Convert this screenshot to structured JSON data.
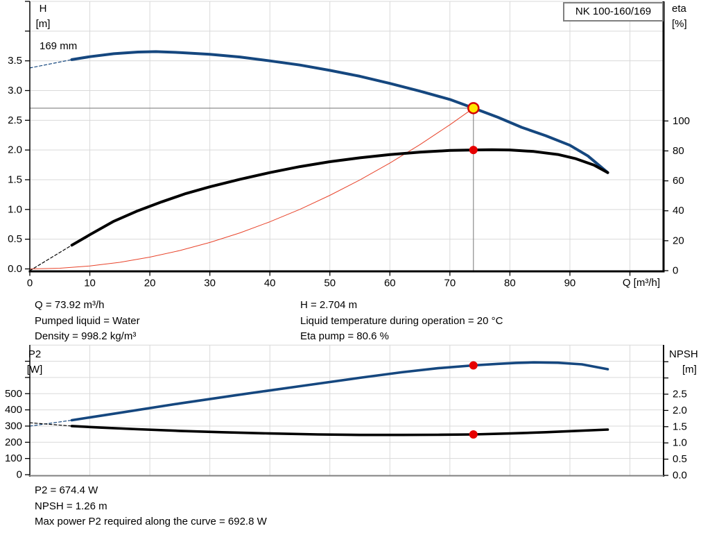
{
  "page": {
    "background": "#ffffff",
    "grid_color": "#d9d9d9",
    "accent_blue": "#15477f",
    "accent_red": "#e8432a",
    "marker_red": "#e60000",
    "duty_fill": "#ffe600",
    "duty_ring": "#d40000",
    "crosshair_color": "#8c8c8c"
  },
  "header": {
    "pump_name": "NK 100-160/169"
  },
  "top_chart_labels": {
    "left_axis_title": [
      "H",
      "[m]"
    ],
    "right_axis_title": [
      "eta",
      "[%]"
    ],
    "x_axis_title": "Q [m³/h]",
    "curve_label": "169 mm"
  },
  "bottom_chart_labels": {
    "left_axis_title": [
      "P2",
      "[W]"
    ],
    "right_axis_title": [
      "NPSH",
      "[m]"
    ]
  },
  "info_block_top": {
    "col1": [
      "Q = 73.92 m³/h",
      "Pumped liquid = Water",
      "Density = 998.2 kg/m³"
    ],
    "col2": [
      "H = 2.704 m",
      "Liquid temperature during operation = 20 °C",
      "Eta pump = 80.6 %"
    ]
  },
  "info_block_bottom": [
    "P2 = 674.4 W",
    "NPSH = 1.26 m",
    "Max power P2 required along the curve = 692.8 W"
  ],
  "chart_data": [
    {
      "type": "line",
      "name": "qh-eta-chart",
      "title": "NK 100-160/169",
      "xlabel": "Q [m³/h]",
      "ylabel_left": "H [m]",
      "ylabel_right": "eta [%]",
      "xlim": [
        0,
        105.6
      ],
      "ylim_left": [
        0,
        4.5
      ],
      "ylim_right": [
        0,
        108
      ],
      "x_ticks": {
        "values": [
          0,
          10,
          20,
          30,
          40,
          50,
          60,
          70,
          80,
          90,
          100
        ],
        "labels": [
          "0",
          "10",
          "20",
          "30",
          "40",
          "50",
          "60",
          "70",
          "80",
          "90",
          ""
        ]
      },
      "left_ticks": {
        "values": [
          0,
          0.5,
          1.0,
          1.5,
          2.0,
          2.5,
          3.0,
          3.5,
          4.0,
          4.5
        ],
        "labels": [
          "0.0",
          "0.5",
          "1.0",
          "1.5",
          "2.0",
          "2.5",
          "3.0",
          "3.5",
          "",
          ""
        ]
      },
      "right_ticks": {
        "values": [
          0,
          20,
          40,
          60,
          80,
          100
        ],
        "labels": [
          "0",
          "20",
          "40",
          "60",
          "80",
          "100"
        ]
      },
      "grid": {
        "vertical": [
          10,
          20,
          30,
          40,
          50,
          60,
          70,
          80,
          90,
          100
        ],
        "horizontal": [
          0.5,
          1.0,
          1.5,
          2.0,
          2.5,
          3.0,
          3.5,
          4.0,
          4.5
        ]
      },
      "crosshair": {
        "q": 73.92,
        "value": 2.704,
        "axis": "left"
      },
      "series": [
        {
          "name": "head-curve-dashed",
          "axis": "left",
          "color": "#15477f",
          "width": 1.2,
          "dash": "4 3",
          "points": [
            [
              0,
              3.38
            ],
            [
              3,
              3.44
            ],
            [
              7,
              3.52
            ]
          ]
        },
        {
          "name": "system-curve",
          "axis": "left",
          "color": "#e8432a",
          "width": 1,
          "points": [
            [
              0,
              0
            ],
            [
              5,
              0.012
            ],
            [
              10,
              0.05
            ],
            [
              15,
              0.111
            ],
            [
              20,
              0.198
            ],
            [
              25,
              0.309
            ],
            [
              30,
              0.445
            ],
            [
              35,
              0.606
            ],
            [
              40,
              0.792
            ],
            [
              45,
              1.002
            ],
            [
              50,
              1.237
            ],
            [
              55,
              1.497
            ],
            [
              60,
              1.781
            ],
            [
              65,
              2.091
            ],
            [
              70,
              2.424
            ],
            [
              73.92,
              2.704
            ]
          ]
        },
        {
          "name": "eta-curve-dashed",
          "axis": "right",
          "color": "#000000",
          "width": 1.2,
          "dash": "4 3",
          "points": [
            [
              0,
              0
            ],
            [
              7,
              17
            ]
          ]
        },
        {
          "name": "head-curve",
          "axis": "left",
          "color": "#15477f",
          "width": 4,
          "points": [
            [
              7,
              3.52
            ],
            [
              10,
              3.57
            ],
            [
              14,
              3.62
            ],
            [
              18,
              3.648
            ],
            [
              21,
              3.655
            ],
            [
              25,
              3.64
            ],
            [
              30,
              3.61
            ],
            [
              35,
              3.565
            ],
            [
              40,
              3.5
            ],
            [
              45,
              3.43
            ],
            [
              50,
              3.34
            ],
            [
              55,
              3.24
            ],
            [
              60,
              3.12
            ],
            [
              65,
              2.99
            ],
            [
              70,
              2.85
            ],
            [
              73.92,
              2.704
            ],
            [
              78,
              2.55
            ],
            [
              82,
              2.38
            ],
            [
              86,
              2.24
            ],
            [
              90,
              2.08
            ],
            [
              93,
              1.9
            ],
            [
              96.3,
              1.62
            ]
          ]
        },
        {
          "name": "eta-curve",
          "axis": "right",
          "color": "#000000",
          "width": 4,
          "points": [
            [
              7,
              17
            ],
            [
              10,
              24
            ],
            [
              14,
              33
            ],
            [
              18,
              40
            ],
            [
              22,
              46
            ],
            [
              26,
              51.5
            ],
            [
              30,
              56
            ],
            [
              35,
              61
            ],
            [
              40,
              65.5
            ],
            [
              45,
              69.5
            ],
            [
              50,
              72.8
            ],
            [
              55,
              75.4
            ],
            [
              60,
              77.5
            ],
            [
              65,
              79.2
            ],
            [
              70,
              80.3
            ],
            [
              73.92,
              80.6
            ],
            [
              77,
              80.8
            ],
            [
              80,
              80.6
            ],
            [
              84,
              79.6
            ],
            [
              88,
              77.6
            ],
            [
              91,
              74.8
            ],
            [
              94,
              70.5
            ],
            [
              96.3,
              65.5
            ]
          ]
        }
      ],
      "markers": [
        {
          "name": "eta-operating-point",
          "axis": "right",
          "q": 73.92,
          "value": 80.6,
          "kind": "dot"
        },
        {
          "name": "duty-point",
          "axis": "left",
          "q": 73.92,
          "value": 2.704,
          "kind": "duty"
        }
      ]
    },
    {
      "type": "line",
      "name": "p2-npsh-chart",
      "xlabel": "",
      "ylabel_left": "P2 [W]",
      "ylabel_right": "NPSH [m]",
      "xlim": [
        0,
        105.6
      ],
      "ylim_left": [
        0,
        800
      ],
      "ylim_right": [
        0,
        4.0
      ],
      "x_ticks": {
        "values": [],
        "labels": []
      },
      "left_ticks": {
        "values": [
          0,
          100,
          200,
          300,
          400,
          500,
          600,
          700
        ],
        "labels": [
          "0",
          "100",
          "200",
          "300",
          "400",
          "500",
          "",
          ""
        ]
      },
      "right_ticks": {
        "values": [
          0,
          0.5,
          1.0,
          1.5,
          2.0,
          2.5,
          3.0,
          3.5
        ],
        "labels": [
          "0.0",
          "0.5",
          "1.0",
          "1.5",
          "2.0",
          "2.5",
          "",
          ""
        ]
      },
      "grid": {
        "vertical": [
          10,
          20,
          30,
          40,
          50,
          60,
          70,
          80,
          90,
          100
        ],
        "horizontal": [
          100,
          200,
          300,
          400,
          500,
          600,
          700,
          800
        ]
      },
      "series": [
        {
          "name": "p2-curve-dashed",
          "axis": "left",
          "color": "#15477f",
          "width": 1.2,
          "dash": "4 3",
          "points": [
            [
              0,
              300
            ],
            [
              7,
              336
            ]
          ]
        },
        {
          "name": "npsh-curve-dashed",
          "axis": "right",
          "color": "#000000",
          "width": 1.2,
          "dash": "4 3",
          "points": [
            [
              0,
              1.62
            ],
            [
              7,
              1.52
            ]
          ]
        },
        {
          "name": "p2-curve",
          "axis": "left",
          "color": "#15477f",
          "width": 3.6,
          "points": [
            [
              7,
              336
            ],
            [
              15,
              382
            ],
            [
              25,
              440
            ],
            [
              35,
              494
            ],
            [
              45,
              546
            ],
            [
              55,
              598
            ],
            [
              62,
              632
            ],
            [
              68,
              657
            ],
            [
              73.92,
              674.4
            ],
            [
              78,
              684
            ],
            [
              81,
              690
            ],
            [
              84,
              692.8
            ],
            [
              88,
              691
            ],
            [
              92,
              681
            ],
            [
              96.3,
              651
            ]
          ]
        },
        {
          "name": "npsh-curve",
          "axis": "right",
          "color": "#000000",
          "width": 3.6,
          "points": [
            [
              7,
              1.52
            ],
            [
              12,
              1.47
            ],
            [
              18,
              1.42
            ],
            [
              25,
              1.37
            ],
            [
              32,
              1.33
            ],
            [
              40,
              1.29
            ],
            [
              48,
              1.26
            ],
            [
              55,
              1.245
            ],
            [
              62,
              1.245
            ],
            [
              68,
              1.25
            ],
            [
              73.92,
              1.26
            ],
            [
              80,
              1.29
            ],
            [
              86,
              1.33
            ],
            [
              91,
              1.37
            ],
            [
              96.3,
              1.41
            ]
          ]
        }
      ],
      "markers": [
        {
          "name": "p2-operating-point",
          "axis": "left",
          "q": 73.92,
          "value": 674.4,
          "kind": "dot"
        },
        {
          "name": "npsh-operating-point",
          "axis": "right",
          "q": 73.92,
          "value": 1.26,
          "kind": "dot"
        }
      ]
    }
  ]
}
